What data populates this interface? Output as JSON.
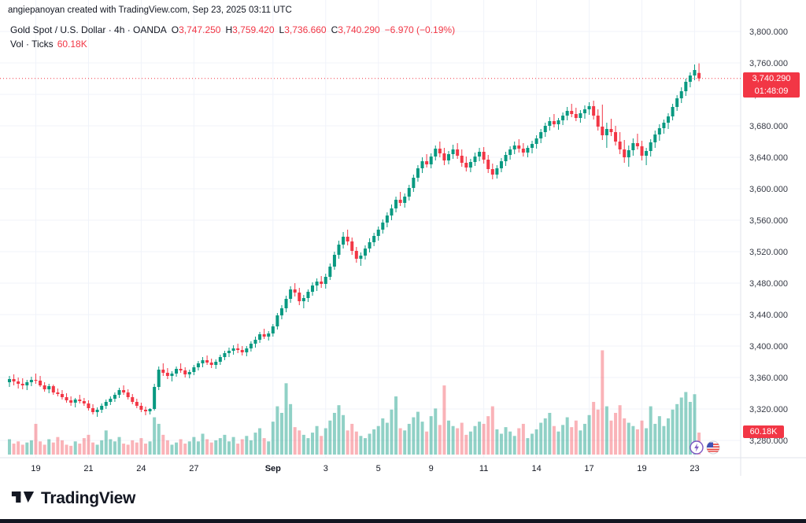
{
  "attribution": "angiepanoyan created with TradingView.com, Sep 23, 2025 03:11 UTC",
  "legend": {
    "title": "Gold Spot / U.S. Dollar · 4h · OANDA",
    "o_label": "O",
    "o_value": "3,747.250",
    "h_label": "H",
    "h_value": "3,759.420",
    "l_label": "L",
    "l_value": "3,736.660",
    "c_label": "C",
    "c_value": "3,740.290",
    "change": "−6.970 (−0.19%)",
    "vol_label": "Vol · Ticks",
    "vol_value": "60.18K"
  },
  "price_badge": {
    "price": "3,740.290",
    "countdown": "01:48:09"
  },
  "volume_badge": "60.18K",
  "footer": {
    "logo_text": "TradingView"
  },
  "colors": {
    "up": "#089981",
    "down": "#f23645",
    "vol_up": "rgba(8,153,129,0.45)",
    "vol_down": "rgba(242,54,69,0.38)",
    "grid": "#f0f3fa",
    "axis_text": "#363a45",
    "separator": "#e0e3eb",
    "accent_red": "#f23645"
  },
  "chart_data": {
    "type": "candlestick",
    "title": "Gold Spot / U.S. Dollar",
    "interval": "4h",
    "exchange": "OANDA",
    "last": {
      "open": 3747.25,
      "high": 3759.42,
      "low": 3736.66,
      "close": 3740.29,
      "change": -6.97,
      "change_pct": -0.19,
      "volume_k": 60.18
    },
    "last_price": 3740.29,
    "ylim": [
      3280,
      3800
    ],
    "y_gridlines": [
      3800,
      3760,
      3720,
      3680,
      3640,
      3600,
      3560,
      3520,
      3480,
      3440,
      3400,
      3360,
      3320,
      3280
    ],
    "x_ticks": [
      {
        "i": 6,
        "label": "19"
      },
      {
        "i": 18,
        "label": "21"
      },
      {
        "i": 30,
        "label": "24"
      },
      {
        "i": 42,
        "label": "27"
      },
      {
        "i": 60,
        "label": "Sep",
        "bold": true
      },
      {
        "i": 72,
        "label": "3"
      },
      {
        "i": 84,
        "label": "5"
      },
      {
        "i": 96,
        "label": "9"
      },
      {
        "i": 108,
        "label": "11"
      },
      {
        "i": 120,
        "label": "14"
      },
      {
        "i": 132,
        "label": "17"
      },
      {
        "i": 144,
        "label": "19"
      },
      {
        "i": 156,
        "label": "23"
      }
    ],
    "candles": [
      [
        3354,
        3362,
        3348,
        3358
      ],
      [
        3358,
        3364,
        3350,
        3355
      ],
      [
        3355,
        3360,
        3346,
        3352
      ],
      [
        3352,
        3359,
        3345,
        3350
      ],
      [
        3350,
        3357,
        3344,
        3354
      ],
      [
        3354,
        3361,
        3349,
        3357
      ],
      [
        3357,
        3365,
        3352,
        3356
      ],
      [
        3356,
        3362,
        3348,
        3350
      ],
      [
        3350,
        3354,
        3342,
        3345
      ],
      [
        3345,
        3352,
        3340,
        3349
      ],
      [
        3349,
        3351,
        3338,
        3341
      ],
      [
        3341,
        3346,
        3336,
        3339
      ],
      [
        3339,
        3344,
        3332,
        3335
      ],
      [
        3335,
        3340,
        3328,
        3331
      ],
      [
        3331,
        3336,
        3324,
        3328
      ],
      [
        3328,
        3334,
        3322,
        3332
      ],
      [
        3332,
        3338,
        3327,
        3330
      ],
      [
        3330,
        3334,
        3324,
        3327
      ],
      [
        3327,
        3331,
        3318,
        3321
      ],
      [
        3321,
        3326,
        3313,
        3316
      ],
      [
        3316,
        3322,
        3310,
        3319
      ],
      [
        3319,
        3327,
        3315,
        3324
      ],
      [
        3324,
        3332,
        3320,
        3329
      ],
      [
        3329,
        3336,
        3325,
        3333
      ],
      [
        3333,
        3341,
        3329,
        3338
      ],
      [
        3338,
        3347,
        3334,
        3344
      ],
      [
        3344,
        3350,
        3338,
        3341
      ],
      [
        3341,
        3345,
        3332,
        3335
      ],
      [
        3335,
        3339,
        3326,
        3329
      ],
      [
        3329,
        3333,
        3321,
        3324
      ],
      [
        3324,
        3328,
        3316,
        3319
      ],
      [
        3319,
        3323,
        3312,
        3317
      ],
      [
        3317,
        3321,
        3313,
        3320
      ],
      [
        3320,
        3352,
        3318,
        3348
      ],
      [
        3348,
        3374,
        3344,
        3370
      ],
      [
        3370,
        3378,
        3362,
        3366
      ],
      [
        3366,
        3372,
        3358,
        3362
      ],
      [
        3362,
        3368,
        3355,
        3365
      ],
      [
        3365,
        3374,
        3361,
        3371
      ],
      [
        3371,
        3378,
        3366,
        3369
      ],
      [
        3369,
        3373,
        3360,
        3364
      ],
      [
        3364,
        3370,
        3359,
        3367
      ],
      [
        3367,
        3376,
        3363,
        3373
      ],
      [
        3373,
        3381,
        3369,
        3378
      ],
      [
        3378,
        3386,
        3373,
        3382
      ],
      [
        3382,
        3388,
        3376,
        3379
      ],
      [
        3379,
        3384,
        3372,
        3376
      ],
      [
        3376,
        3383,
        3371,
        3380
      ],
      [
        3380,
        3389,
        3376,
        3386
      ],
      [
        3386,
        3394,
        3382,
        3391
      ],
      [
        3391,
        3398,
        3386,
        3394
      ],
      [
        3394,
        3401,
        3389,
        3397
      ],
      [
        3397,
        3403,
        3391,
        3395
      ],
      [
        3395,
        3400,
        3388,
        3392
      ],
      [
        3392,
        3400,
        3387,
        3397
      ],
      [
        3397,
        3406,
        3393,
        3403
      ],
      [
        3403,
        3412,
        3398,
        3408
      ],
      [
        3408,
        3418,
        3404,
        3415
      ],
      [
        3415,
        3422,
        3409,
        3412
      ],
      [
        3412,
        3419,
        3407,
        3416
      ],
      [
        3416,
        3428,
        3412,
        3425
      ],
      [
        3425,
        3442,
        3421,
        3439
      ],
      [
        3439,
        3452,
        3434,
        3448
      ],
      [
        3448,
        3464,
        3443,
        3460
      ],
      [
        3460,
        3476,
        3455,
        3472
      ],
      [
        3472,
        3480,
        3463,
        3468
      ],
      [
        3468,
        3474,
        3452,
        3457
      ],
      [
        3457,
        3465,
        3448,
        3461
      ],
      [
        3461,
        3472,
        3456,
        3469
      ],
      [
        3469,
        3481,
        3464,
        3477
      ],
      [
        3477,
        3486,
        3470,
        3482
      ],
      [
        3482,
        3489,
        3474,
        3479
      ],
      [
        3479,
        3492,
        3473,
        3488
      ],
      [
        3488,
        3505,
        3484,
        3501
      ],
      [
        3501,
        3520,
        3497,
        3516
      ],
      [
        3516,
        3534,
        3511,
        3529
      ],
      [
        3529,
        3545,
        3524,
        3539
      ],
      [
        3539,
        3548,
        3528,
        3533
      ],
      [
        3533,
        3538,
        3516,
        3521
      ],
      [
        3521,
        3526,
        3506,
        3511
      ],
      [
        3511,
        3519,
        3502,
        3515
      ],
      [
        3515,
        3528,
        3510,
        3524
      ],
      [
        3524,
        3537,
        3519,
        3532
      ],
      [
        3532,
        3544,
        3527,
        3540
      ],
      [
        3540,
        3552,
        3534,
        3548
      ],
      [
        3548,
        3561,
        3543,
        3557
      ],
      [
        3557,
        3570,
        3551,
        3566
      ],
      [
        3566,
        3580,
        3560,
        3575
      ],
      [
        3575,
        3590,
        3570,
        3586
      ],
      [
        3586,
        3596,
        3578,
        3582
      ],
      [
        3582,
        3594,
        3576,
        3590
      ],
      [
        3590,
        3605,
        3585,
        3601
      ],
      [
        3601,
        3618,
        3596,
        3614
      ],
      [
        3614,
        3630,
        3609,
        3626
      ],
      [
        3626,
        3640,
        3620,
        3635
      ],
      [
        3635,
        3644,
        3627,
        3631
      ],
      [
        3631,
        3645,
        3626,
        3641
      ],
      [
        3641,
        3655,
        3636,
        3651
      ],
      [
        3651,
        3660,
        3640,
        3645
      ],
      [
        3645,
        3652,
        3630,
        3636
      ],
      [
        3636,
        3648,
        3631,
        3644
      ],
      [
        3644,
        3656,
        3638,
        3650
      ],
      [
        3650,
        3658,
        3638,
        3642
      ],
      [
        3642,
        3650,
        3628,
        3633
      ],
      [
        3633,
        3641,
        3622,
        3627
      ],
      [
        3627,
        3638,
        3621,
        3634
      ],
      [
        3634,
        3646,
        3629,
        3641
      ],
      [
        3641,
        3652,
        3635,
        3647
      ],
      [
        3647,
        3653,
        3632,
        3637
      ],
      [
        3637,
        3643,
        3620,
        3625
      ],
      [
        3625,
        3632,
        3612,
        3618
      ],
      [
        3618,
        3630,
        3613,
        3626
      ],
      [
        3626,
        3639,
        3621,
        3635
      ],
      [
        3635,
        3647,
        3629,
        3643
      ],
      [
        3643,
        3654,
        3637,
        3650
      ],
      [
        3650,
        3660,
        3644,
        3655
      ],
      [
        3655,
        3663,
        3646,
        3651
      ],
      [
        3651,
        3658,
        3641,
        3646
      ],
      [
        3646,
        3655,
        3640,
        3652
      ],
      [
        3652,
        3661,
        3645,
        3657
      ],
      [
        3657,
        3668,
        3651,
        3664
      ],
      [
        3664,
        3676,
        3658,
        3672
      ],
      [
        3672,
        3684,
        3666,
        3680
      ],
      [
        3680,
        3691,
        3674,
        3686
      ],
      [
        3686,
        3695,
        3678,
        3682
      ],
      [
        3682,
        3690,
        3675,
        3687
      ],
      [
        3687,
        3697,
        3681,
        3693
      ],
      [
        3693,
        3704,
        3687,
        3699
      ],
      [
        3699,
        3708,
        3691,
        3695
      ],
      [
        3695,
        3703,
        3686,
        3690
      ],
      [
        3690,
        3700,
        3684,
        3696
      ],
      [
        3696,
        3706,
        3689,
        3701
      ],
      [
        3701,
        3710,
        3694,
        3705
      ],
      [
        3705,
        3712,
        3688,
        3693
      ],
      [
        3693,
        3701,
        3674,
        3679
      ],
      [
        3679,
        3707,
        3662,
        3668
      ],
      [
        3668,
        3684,
        3652,
        3676
      ],
      [
        3676,
        3689,
        3667,
        3672
      ],
      [
        3672,
        3680,
        3655,
        3660
      ],
      [
        3660,
        3672,
        3644,
        3650
      ],
      [
        3650,
        3662,
        3633,
        3640
      ],
      [
        3640,
        3655,
        3628,
        3649
      ],
      [
        3649,
        3664,
        3642,
        3658
      ],
      [
        3658,
        3670,
        3650,
        3654
      ],
      [
        3654,
        3661,
        3636,
        3642
      ],
      [
        3642,
        3652,
        3630,
        3648
      ],
      [
        3648,
        3663,
        3641,
        3659
      ],
      [
        3659,
        3674,
        3652,
        3669
      ],
      [
        3669,
        3682,
        3661,
        3677
      ],
      [
        3677,
        3688,
        3670,
        3684
      ],
      [
        3684,
        3696,
        3676,
        3692
      ],
      [
        3692,
        3708,
        3687,
        3704
      ],
      [
        3704,
        3719,
        3699,
        3715
      ],
      [
        3715,
        3729,
        3709,
        3724
      ],
      [
        3724,
        3740,
        3718,
        3736
      ],
      [
        3736,
        3748,
        3729,
        3744
      ],
      [
        3744,
        3758,
        3738,
        3751
      ],
      [
        3747.25,
        3759.42,
        3736.66,
        3740.29
      ]
    ],
    "volumes_k": [
      42,
      30,
      36,
      27,
      33,
      39,
      84,
      36,
      27,
      42,
      33,
      48,
      39,
      27,
      24,
      36,
      30,
      45,
      54,
      33,
      27,
      39,
      66,
      42,
      36,
      48,
      30,
      27,
      39,
      33,
      45,
      30,
      36,
      102,
      84,
      54,
      39,
      27,
      33,
      42,
      30,
      36,
      48,
      36,
      57,
      42,
      33,
      39,
      45,
      54,
      36,
      48,
      30,
      42,
      51,
      39,
      60,
      72,
      45,
      36,
      90,
      132,
      114,
      195,
      138,
      75,
      66,
      54,
      45,
      60,
      78,
      51,
      72,
      93,
      114,
      135,
      108,
      66,
      84,
      63,
      51,
      45,
      57,
      69,
      78,
      99,
      87,
      123,
      159,
      72,
      66,
      84,
      102,
      117,
      90,
      63,
      105,
      126,
      81,
      189,
      93,
      78,
      72,
      87,
      54,
      63,
      78,
      90,
      84,
      105,
      132,
      69,
      57,
      75,
      63,
      51,
      72,
      84,
      45,
      57,
      69,
      87,
      99,
      114,
      78,
      63,
      81,
      102,
      75,
      93,
      66,
      84,
      108,
      144,
      123,
      285,
      132,
      93,
      114,
      135,
      99,
      87,
      78,
      69,
      93,
      72,
      132,
      84,
      105,
      78,
      99,
      123,
      138,
      156,
      171,
      144,
      165,
      60.18
    ]
  }
}
